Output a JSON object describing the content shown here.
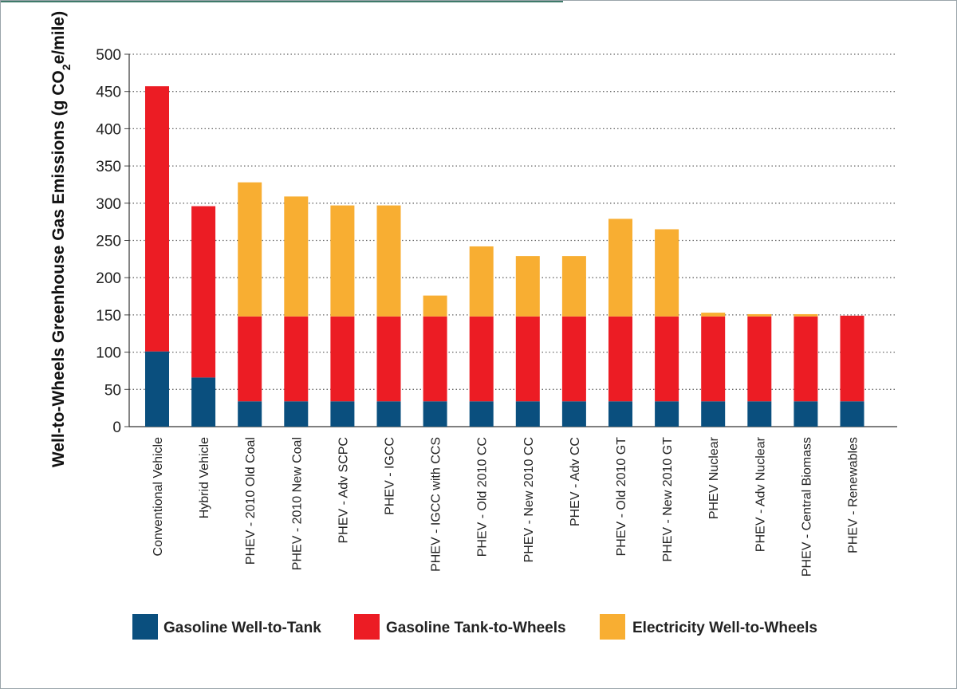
{
  "chart_data": {
    "type": "bar",
    "stacked": true,
    "title": "",
    "xlabel": "",
    "ylabel": "Well-to-Wheels Greenhouse Gas Emissions (g CO2e/mile)",
    "ylim": [
      0,
      500
    ],
    "yticks": [
      "0",
      "50",
      "100",
      "150",
      "200",
      "250",
      "300",
      "350",
      "400",
      "450",
      "500"
    ],
    "grid": true,
    "legend_position": "bottom",
    "categories": [
      "Conventional Vehicle",
      "Hybrid Vehicle",
      "PHEV - 2010 Old Coal",
      "PHEV - 2010 New Coal",
      "PHEV - Adv SCPC",
      "PHEV - IGCC",
      "PHEV - IGCC with CCS",
      "PHEV - Old 2010 CC",
      "PHEV - New 2010 CC",
      "PHEV - Adv CC",
      "PHEV - Old 2010 GT",
      "PHEV - New 2010 GT",
      "PHEV Nuclear",
      "PHEV - Adv Nuclear",
      "PHEV - Central Biomass",
      "PHEV - Renewables"
    ],
    "series": [
      {
        "name": "Gasoline Well-to-Tank",
        "color": "#0a4f7e",
        "values": [
          101,
          66,
          34,
          34,
          34,
          34,
          34,
          34,
          34,
          34,
          34,
          34,
          34,
          34,
          34,
          34
        ]
      },
      {
        "name": "Gasoline Tank-to-Wheels",
        "color": "#ec1c24",
        "values": [
          356,
          230,
          114,
          114,
          114,
          114,
          114,
          114,
          114,
          114,
          114,
          114,
          114,
          114,
          114,
          115
        ]
      },
      {
        "name": "Electricity Well-to-Wheels",
        "color": "#f8ae32",
        "values": [
          0,
          0,
          180,
          161,
          149,
          149,
          28,
          94,
          81,
          81,
          131,
          117,
          5,
          3,
          3,
          0
        ]
      }
    ]
  }
}
